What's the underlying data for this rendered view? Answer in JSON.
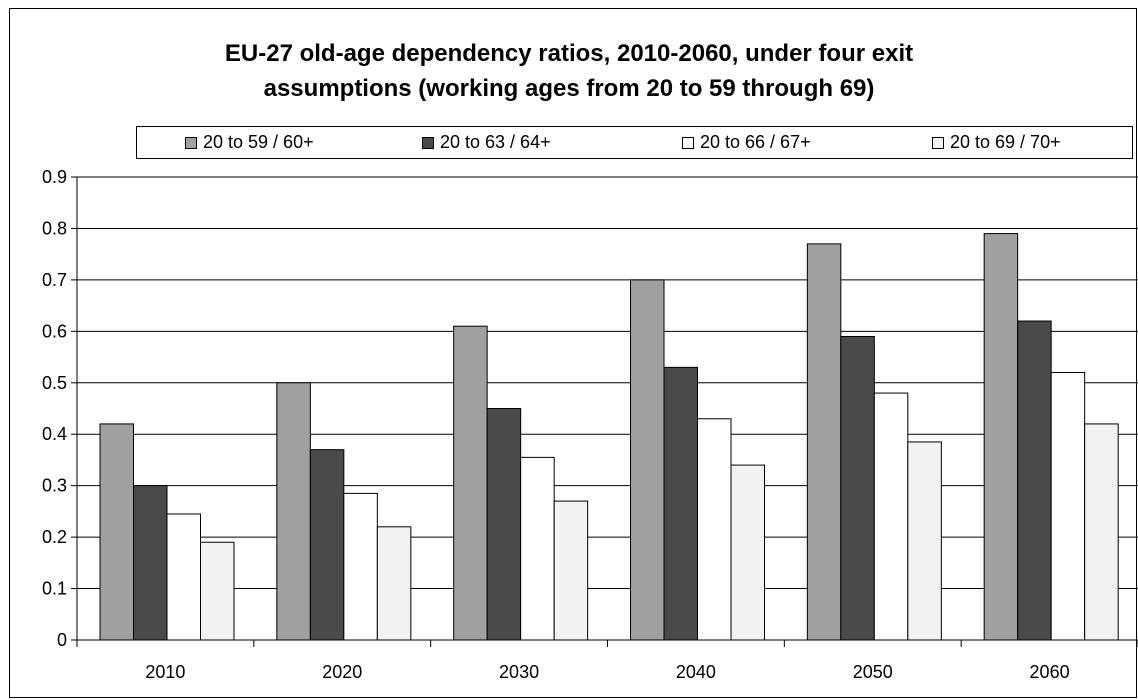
{
  "chart_data": {
    "type": "bar",
    "title_lines": [
      "EU-27 old-age dependency ratios, 2010-2060, under four exit",
      "assumptions (working ages from 20 to 59 through 69)"
    ],
    "categories": [
      "2010",
      "2020",
      "2030",
      "2040",
      "2050",
      "2060"
    ],
    "series": [
      {
        "name": "20 to 59 / 60+",
        "color": "#a0a0a0",
        "values": [
          0.42,
          0.5,
          0.61,
          0.7,
          0.77,
          0.79
        ]
      },
      {
        "name": "20 to 63 / 64+",
        "color": "#4a4a4a",
        "values": [
          0.3,
          0.37,
          0.45,
          0.53,
          0.59,
          0.62
        ]
      },
      {
        "name": "20 to 66 / 67+",
        "color": "#ffffff",
        "values": [
          0.245,
          0.285,
          0.355,
          0.43,
          0.48,
          0.52
        ]
      },
      {
        "name": "20 to 69 / 70+",
        "color": "#f2f2f2",
        "values": [
          0.19,
          0.22,
          0.27,
          0.34,
          0.385,
          0.42
        ]
      }
    ],
    "y_ticks": [
      "0",
      "0.1",
      "0.2",
      "0.3",
      "0.4",
      "0.5",
      "0.6",
      "0.7",
      "0.8",
      "0.9"
    ],
    "ylim": [
      0,
      0.9
    ],
    "grid": true,
    "legend_position": "top"
  }
}
